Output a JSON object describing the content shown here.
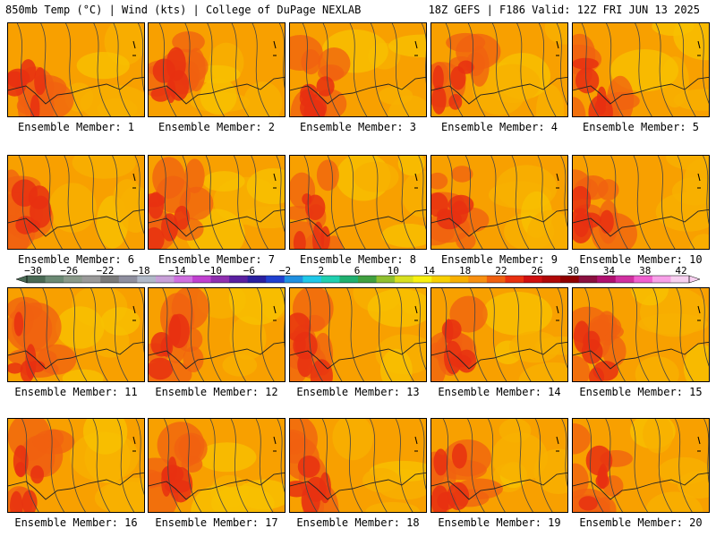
{
  "header": {
    "title": "850mb Temp (°C) | Wind (kts) | College of DuPage NEXLAB",
    "run_info": "18Z GEFS | F186 Valid: 12Z FRI JUN 13 2025"
  },
  "panels": [
    {
      "label": "Ensemble Member: 1"
    },
    {
      "label": "Ensemble Member: 2"
    },
    {
      "label": "Ensemble Member: 3"
    },
    {
      "label": "Ensemble Member: 4"
    },
    {
      "label": "Ensemble Member: 5"
    },
    {
      "label": "Ensemble Member: 6"
    },
    {
      "label": "Ensemble Member: 7"
    },
    {
      "label": "Ensemble Member: 8"
    },
    {
      "label": "Ensemble Member: 9"
    },
    {
      "label": "Ensemble Member: 10"
    },
    {
      "label": "Ensemble Member: 11"
    },
    {
      "label": "Ensemble Member: 12"
    },
    {
      "label": "Ensemble Member: 13"
    },
    {
      "label": "Ensemble Member: 14"
    },
    {
      "label": "Ensemble Member: 15"
    },
    {
      "label": "Ensemble Member: 16"
    },
    {
      "label": "Ensemble Member: 17"
    },
    {
      "label": "Ensemble Member: 18"
    },
    {
      "label": "Ensemble Member: 19"
    },
    {
      "label": "Ensemble Member: 20"
    }
  ],
  "colorbar": {
    "tick_labels": [
      "−30",
      "−26",
      "−22",
      "−18",
      "−14",
      "−10",
      "−6",
      "−2",
      "2",
      "6",
      "10",
      "14",
      "18",
      "22",
      "26",
      "30",
      "34",
      "38",
      "42"
    ],
    "colors": [
      "#4a6a55",
      "#6b8a74",
      "#8a9a8a",
      "#9a9a9a",
      "#7a7a7a",
      "#8f8f9f",
      "#b0b8c8",
      "#c8a0d8",
      "#d070e0",
      "#c040d0",
      "#9030b0",
      "#5a20a0",
      "#2a20a0",
      "#2040d0",
      "#2090e0",
      "#20c8e8",
      "#20d0b0",
      "#20b070",
      "#40a040",
      "#90c030",
      "#d8e020",
      "#f8f010",
      "#f8d000",
      "#f8b000",
      "#f89010",
      "#f06010",
      "#e83010",
      "#d01010",
      "#b00808",
      "#900000",
      "#8a1040",
      "#b01070",
      "#d030a0",
      "#f060d0",
      "#f8a0e8",
      "#f8d0f0"
    ]
  }
}
